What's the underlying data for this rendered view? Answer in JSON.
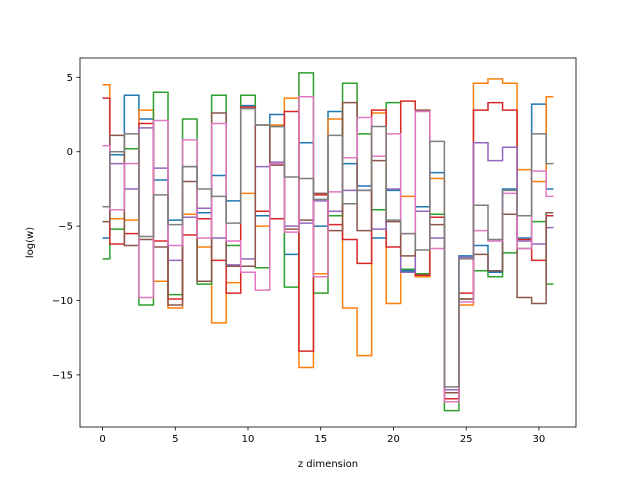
{
  "chart_data": {
    "type": "line",
    "step": "mid",
    "title": "",
    "xlabel": "z dimension",
    "ylabel": "log(w)",
    "xlim": [
      -1.55,
      32.55
    ],
    "ylim": [
      -18.5,
      6.3
    ],
    "xticks": [
      0,
      5,
      10,
      15,
      20,
      25,
      30
    ],
    "yticks": [
      -15,
      -10,
      -5,
      0,
      5
    ],
    "grid": false,
    "x": [
      0,
      1,
      2,
      3,
      4,
      5,
      6,
      7,
      8,
      9,
      10,
      11,
      12,
      13,
      14,
      15,
      16,
      17,
      18,
      19,
      20,
      21,
      22,
      23,
      24,
      25,
      26,
      27,
      28,
      29,
      30,
      31
    ],
    "series": [
      {
        "color": "#1f77b4",
        "values": [
          -5.8,
          -0.2,
          3.8,
          2.2,
          -1.9,
          -4.6,
          -1.0,
          -4.1,
          -1.6,
          -3.3,
          3.1,
          -4.3,
          2.5,
          -6.9,
          0.6,
          -5.0,
          2.7,
          -0.8,
          -2.3,
          -5.8,
          -2.6,
          -8.0,
          -3.7,
          -1.4,
          -16.6,
          -7.0,
          -6.3,
          -8.1,
          -2.5,
          -5.8,
          3.2,
          -2.5
        ]
      },
      {
        "color": "#ff7f0e",
        "values": [
          4.5,
          -4.5,
          -4.6,
          2.8,
          -8.7,
          -10.5,
          -4.2,
          -6.4,
          -11.5,
          -8.8,
          -2.8,
          -5.0,
          1.8,
          3.6,
          -14.5,
          -8.2,
          2.2,
          -10.5,
          -13.7,
          2.6,
          -10.2,
          -3.0,
          -8.4,
          -1.8,
          -16.8,
          -10.3,
          4.6,
          4.9,
          4.6,
          -1.2,
          -2.0,
          3.7
        ]
      },
      {
        "color": "#2ca02c",
        "values": [
          -7.2,
          -5.2,
          0.2,
          -10.3,
          4.0,
          -9.6,
          2.2,
          -8.9,
          3.8,
          -6.3,
          3.8,
          -7.8,
          1.7,
          -9.1,
          5.3,
          -9.5,
          -4.3,
          4.6,
          1.2,
          -3.9,
          3.3,
          -7.9,
          -8.2,
          -4.2,
          -17.4,
          -9.9,
          -8.0,
          -8.4,
          -6.8,
          -6.5,
          -4.7,
          -8.9
        ]
      },
      {
        "color": "#d62728",
        "values": [
          3.6,
          -6.2,
          -5.5,
          1.9,
          -6.0,
          -9.9,
          -5.6,
          -4.5,
          -7.3,
          -9.5,
          3.0,
          -4.0,
          -4.5,
          2.7,
          -13.4,
          -2.9,
          -4.9,
          -5.9,
          -7.5,
          2.8,
          -6.4,
          3.4,
          -8.3,
          -4.4,
          -16.6,
          -9.5,
          2.8,
          3.3,
          2.8,
          -5.9,
          -7.3,
          -4.3
        ]
      },
      {
        "color": "#9467bd",
        "values": [
          0.4,
          -0.8,
          -2.5,
          1.6,
          -1.1,
          -7.3,
          -4.4,
          -3.8,
          -5.8,
          -7.6,
          -7.2,
          -1.0,
          -0.7,
          -5.0,
          -4.8,
          -3.3,
          -4.0,
          -2.6,
          -2.6,
          -5.2,
          -2.5,
          -8.1,
          -4.0,
          -5.8,
          -16.0,
          -7.1,
          0.6,
          -0.6,
          0.3,
          -6.0,
          -6.2,
          -5.1
        ]
      },
      {
        "color": "#8c564b",
        "values": [
          -4.7,
          1.1,
          -6.3,
          -5.9,
          -6.4,
          -10.3,
          -2.0,
          -8.7,
          2.6,
          -7.7,
          -7.7,
          1.8,
          -0.9,
          -5.2,
          -4.6,
          -2.8,
          -5.3,
          3.3,
          -5.3,
          -0.6,
          -4.7,
          -7.0,
          2.8,
          -4.9,
          -16.2,
          -9.9,
          -6.9,
          -8.0,
          -4.2,
          -9.8,
          -10.2,
          -4.1
        ]
      },
      {
        "color": "#e377c2",
        "values": [
          0.4,
          -3.9,
          -0.8,
          -9.8,
          2.1,
          -6.3,
          0.8,
          -5.8,
          1.9,
          -6.0,
          -8.1,
          -9.3,
          -0.8,
          -5.4,
          3.7,
          -8.4,
          -2.7,
          -0.4,
          2.3,
          -0.3,
          1.2,
          -5.5,
          2.7,
          -6.5,
          -16.8,
          -10.1,
          -5.3,
          -6.0,
          -2.8,
          -6.5,
          -1.3,
          -3.0
        ]
      },
      {
        "color": "#7f7f7f",
        "values": [
          -3.7,
          0.0,
          1.2,
          -5.7,
          -2.9,
          -4.9,
          -1.0,
          -2.5,
          -3.0,
          -4.8,
          2.9,
          1.8,
          1.7,
          -1.7,
          -1.8,
          -3.2,
          1.1,
          -3.5,
          -2.6,
          1.7,
          -4.6,
          -5.5,
          -6.6,
          0.7,
          -15.8,
          -7.2,
          -3.6,
          -5.9,
          -2.6,
          -4.3,
          1.2,
          -0.8
        ]
      }
    ]
  }
}
